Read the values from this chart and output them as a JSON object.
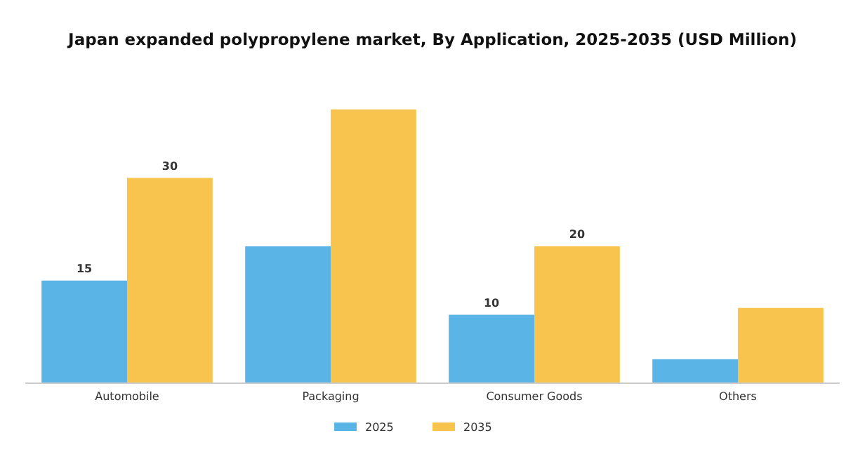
{
  "chart_data": {
    "type": "bar",
    "title": "Japan expanded polypropylene market, By Application, 2025-2035 (USD Million)",
    "categories": [
      "Automobile",
      "Packaging",
      "Consumer Goods",
      "Others"
    ],
    "series": [
      {
        "name": "2025",
        "color": "#5ab4e5",
        "values": [
          15,
          20,
          10,
          3.5
        ],
        "value_labels": [
          "15",
          null,
          "10",
          null
        ]
      },
      {
        "name": "2035",
        "color": "#f9c44e",
        "values": [
          30,
          40,
          20,
          11
        ],
        "value_labels": [
          "30",
          null,
          "20",
          null
        ]
      }
    ],
    "legend": "bottom"
  }
}
